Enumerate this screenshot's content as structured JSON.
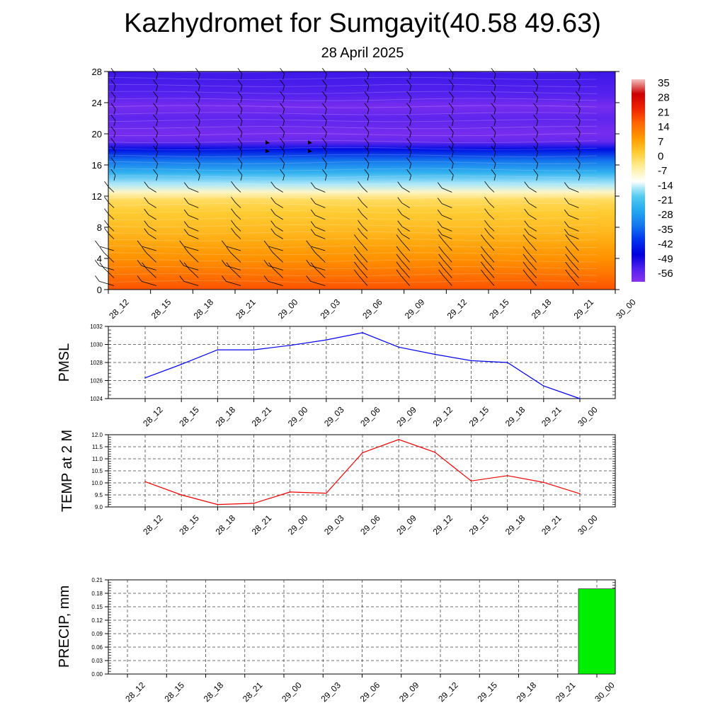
{
  "header": {
    "title": "Kazhydromet for Sumgayit(40.58 49.63)",
    "subtitle": "28 April 2025"
  },
  "colors": {
    "pmsl_line": "#0000ee",
    "temp_line": "#ee0000",
    "precip_bar": "#00ee00",
    "wind_barb": "#000000"
  },
  "chart_data": [
    {
      "type": "heatmap",
      "title": "",
      "xlabel": "",
      "ylabel": "",
      "x_ticks": [
        "28_12",
        "28_15",
        "28_18",
        "28_21",
        "29_00",
        "29_03",
        "29_06",
        "29_09",
        "29_12",
        "29_15",
        "29_18",
        "29_21",
        "30_00"
      ],
      "y_ticks": [
        0,
        4,
        8,
        12,
        16,
        20,
        24,
        28
      ],
      "ylim": [
        0,
        28
      ],
      "colorbar_labels": [
        35,
        28,
        21,
        14,
        7,
        0,
        -7,
        -14,
        -21,
        -28,
        -35,
        -42,
        -49,
        -56
      ],
      "temperature_profile": [
        {
          "level": 0,
          "value": 16
        },
        {
          "level": 2,
          "value": 12
        },
        {
          "level": 4,
          "value": 8
        },
        {
          "level": 6,
          "value": 5
        },
        {
          "level": 8,
          "value": 2
        },
        {
          "level": 10,
          "value": 0
        },
        {
          "level": 11.5,
          "value": -3
        },
        {
          "level": 12.5,
          "value": -10
        },
        {
          "level": 13.5,
          "value": -17
        },
        {
          "level": 15,
          "value": -26
        },
        {
          "level": 16.5,
          "value": -35
        },
        {
          "level": 18,
          "value": -47
        },
        {
          "level": 19,
          "value": -58
        },
        {
          "level": 20,
          "value": -60
        },
        {
          "level": 22,
          "value": -57
        },
        {
          "level": 23.5,
          "value": -60
        },
        {
          "level": 25,
          "value": -56
        },
        {
          "level": 28,
          "value": -54
        }
      ],
      "wind_barb_levels": [
        0.5,
        1.5,
        2.5,
        3.5,
        5,
        6.5,
        7.5,
        9,
        10.5,
        12.5,
        14,
        15.5,
        17,
        18,
        19.5,
        21,
        22.5,
        24,
        25.5,
        27
      ]
    },
    {
      "type": "line",
      "title": "",
      "xlabel": "",
      "ylabel": "PMSL",
      "x": [
        "28_12",
        "28_15",
        "28_18",
        "28_21",
        "29_00",
        "29_03",
        "29_06",
        "29_09",
        "29_12",
        "29_15",
        "29_18",
        "29_21",
        "30_00"
      ],
      "y": [
        1026.3,
        1027.8,
        1029.4,
        1029.4,
        1029.9,
        1030.5,
        1031.3,
        1029.7,
        1028.9,
        1028.2,
        1028.0,
        1025.4,
        1024.0
      ],
      "ylim": [
        1024,
        1032
      ],
      "y_ticks": [
        1024,
        1026,
        1028,
        1030,
        1032
      ],
      "grid": true
    },
    {
      "type": "line",
      "title": "",
      "xlabel": "",
      "ylabel": "TEMP at 2 M",
      "x": [
        "28_12",
        "28_15",
        "28_18",
        "28_21",
        "29_00",
        "29_03",
        "29_06",
        "29_09",
        "29_12",
        "29_15",
        "29_18",
        "29_21",
        "30_00"
      ],
      "y": [
        10.05,
        9.5,
        9.1,
        9.15,
        9.62,
        9.57,
        11.25,
        11.8,
        11.27,
        10.08,
        10.3,
        10.02,
        9.55
      ],
      "ylim": [
        9.0,
        12.0
      ],
      "y_ticks": [
        "9.0",
        "9.5",
        "10.0",
        "10.5",
        "11.0",
        "11.5",
        "12.0"
      ],
      "grid": true
    },
    {
      "type": "bar",
      "title": "",
      "xlabel": "",
      "ylabel": "PRECIP, mm",
      "categories": [
        "28_12",
        "28_15",
        "28_18",
        "28_21",
        "29_00",
        "29_03",
        "29_06",
        "29_09",
        "29_12",
        "29_15",
        "29_18",
        "29_21",
        "30_00"
      ],
      "values": [
        0,
        0,
        0,
        0,
        0,
        0,
        0,
        0,
        0,
        0,
        0,
        0,
        0.19
      ],
      "ylim": [
        0,
        0.21
      ],
      "y_ticks": [
        "0.00",
        "0.03",
        "0.06",
        "0.09",
        "0.12",
        "0.15",
        "0.18",
        "0.21"
      ],
      "grid": true
    }
  ]
}
